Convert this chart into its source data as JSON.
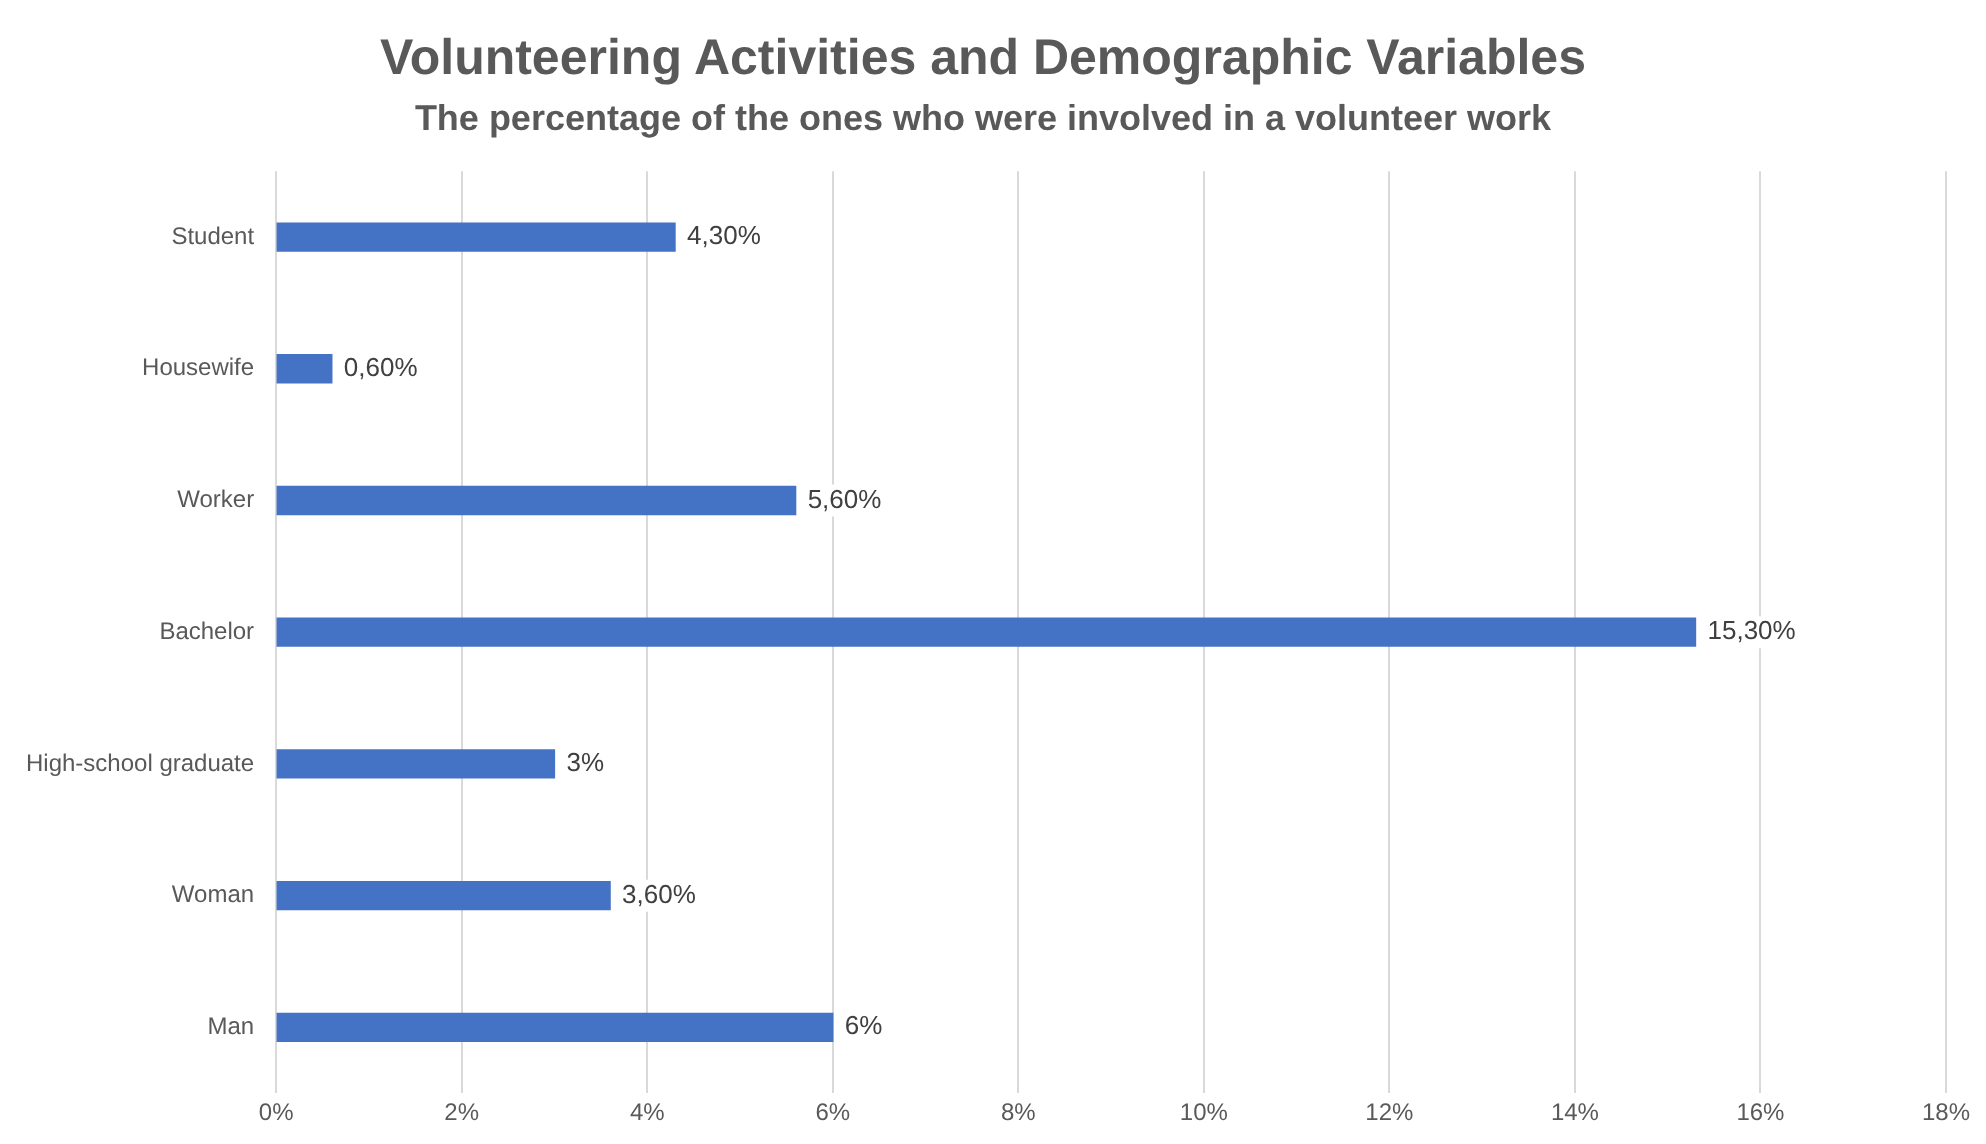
{
  "chart_data": {
    "type": "bar",
    "orientation": "horizontal",
    "title": "Volunteering Activities and Demographic Variables",
    "subtitle": "The percentage of the ones who were involved in a volunteer work",
    "categories": [
      "Student",
      "Housewife",
      "Worker",
      "Bachelor",
      "High-school graduate",
      "Woman",
      "Man"
    ],
    "values": [
      4.3,
      0.6,
      5.6,
      15.3,
      3,
      3.6,
      6
    ],
    "value_labels": [
      "4,30%",
      "0,60%",
      "5,60%",
      "15,30%",
      "3%",
      "3,60%",
      "6%"
    ],
    "color": "#4472c4",
    "xlim": [
      0,
      18
    ],
    "xticks": [
      {
        "value": 0,
        "label": "0%"
      },
      {
        "value": 2,
        "label": "2%"
      },
      {
        "value": 4,
        "label": "4%"
      },
      {
        "value": 6,
        "label": "6%"
      },
      {
        "value": 8,
        "label": "8%"
      },
      {
        "value": 10,
        "label": "10%"
      },
      {
        "value": 12,
        "label": "12%"
      },
      {
        "value": 14,
        "label": "14%"
      },
      {
        "value": 16,
        "label": "16%"
      },
      {
        "value": 18,
        "label": "18%"
      }
    ],
    "grid": "x",
    "legend": false
  }
}
